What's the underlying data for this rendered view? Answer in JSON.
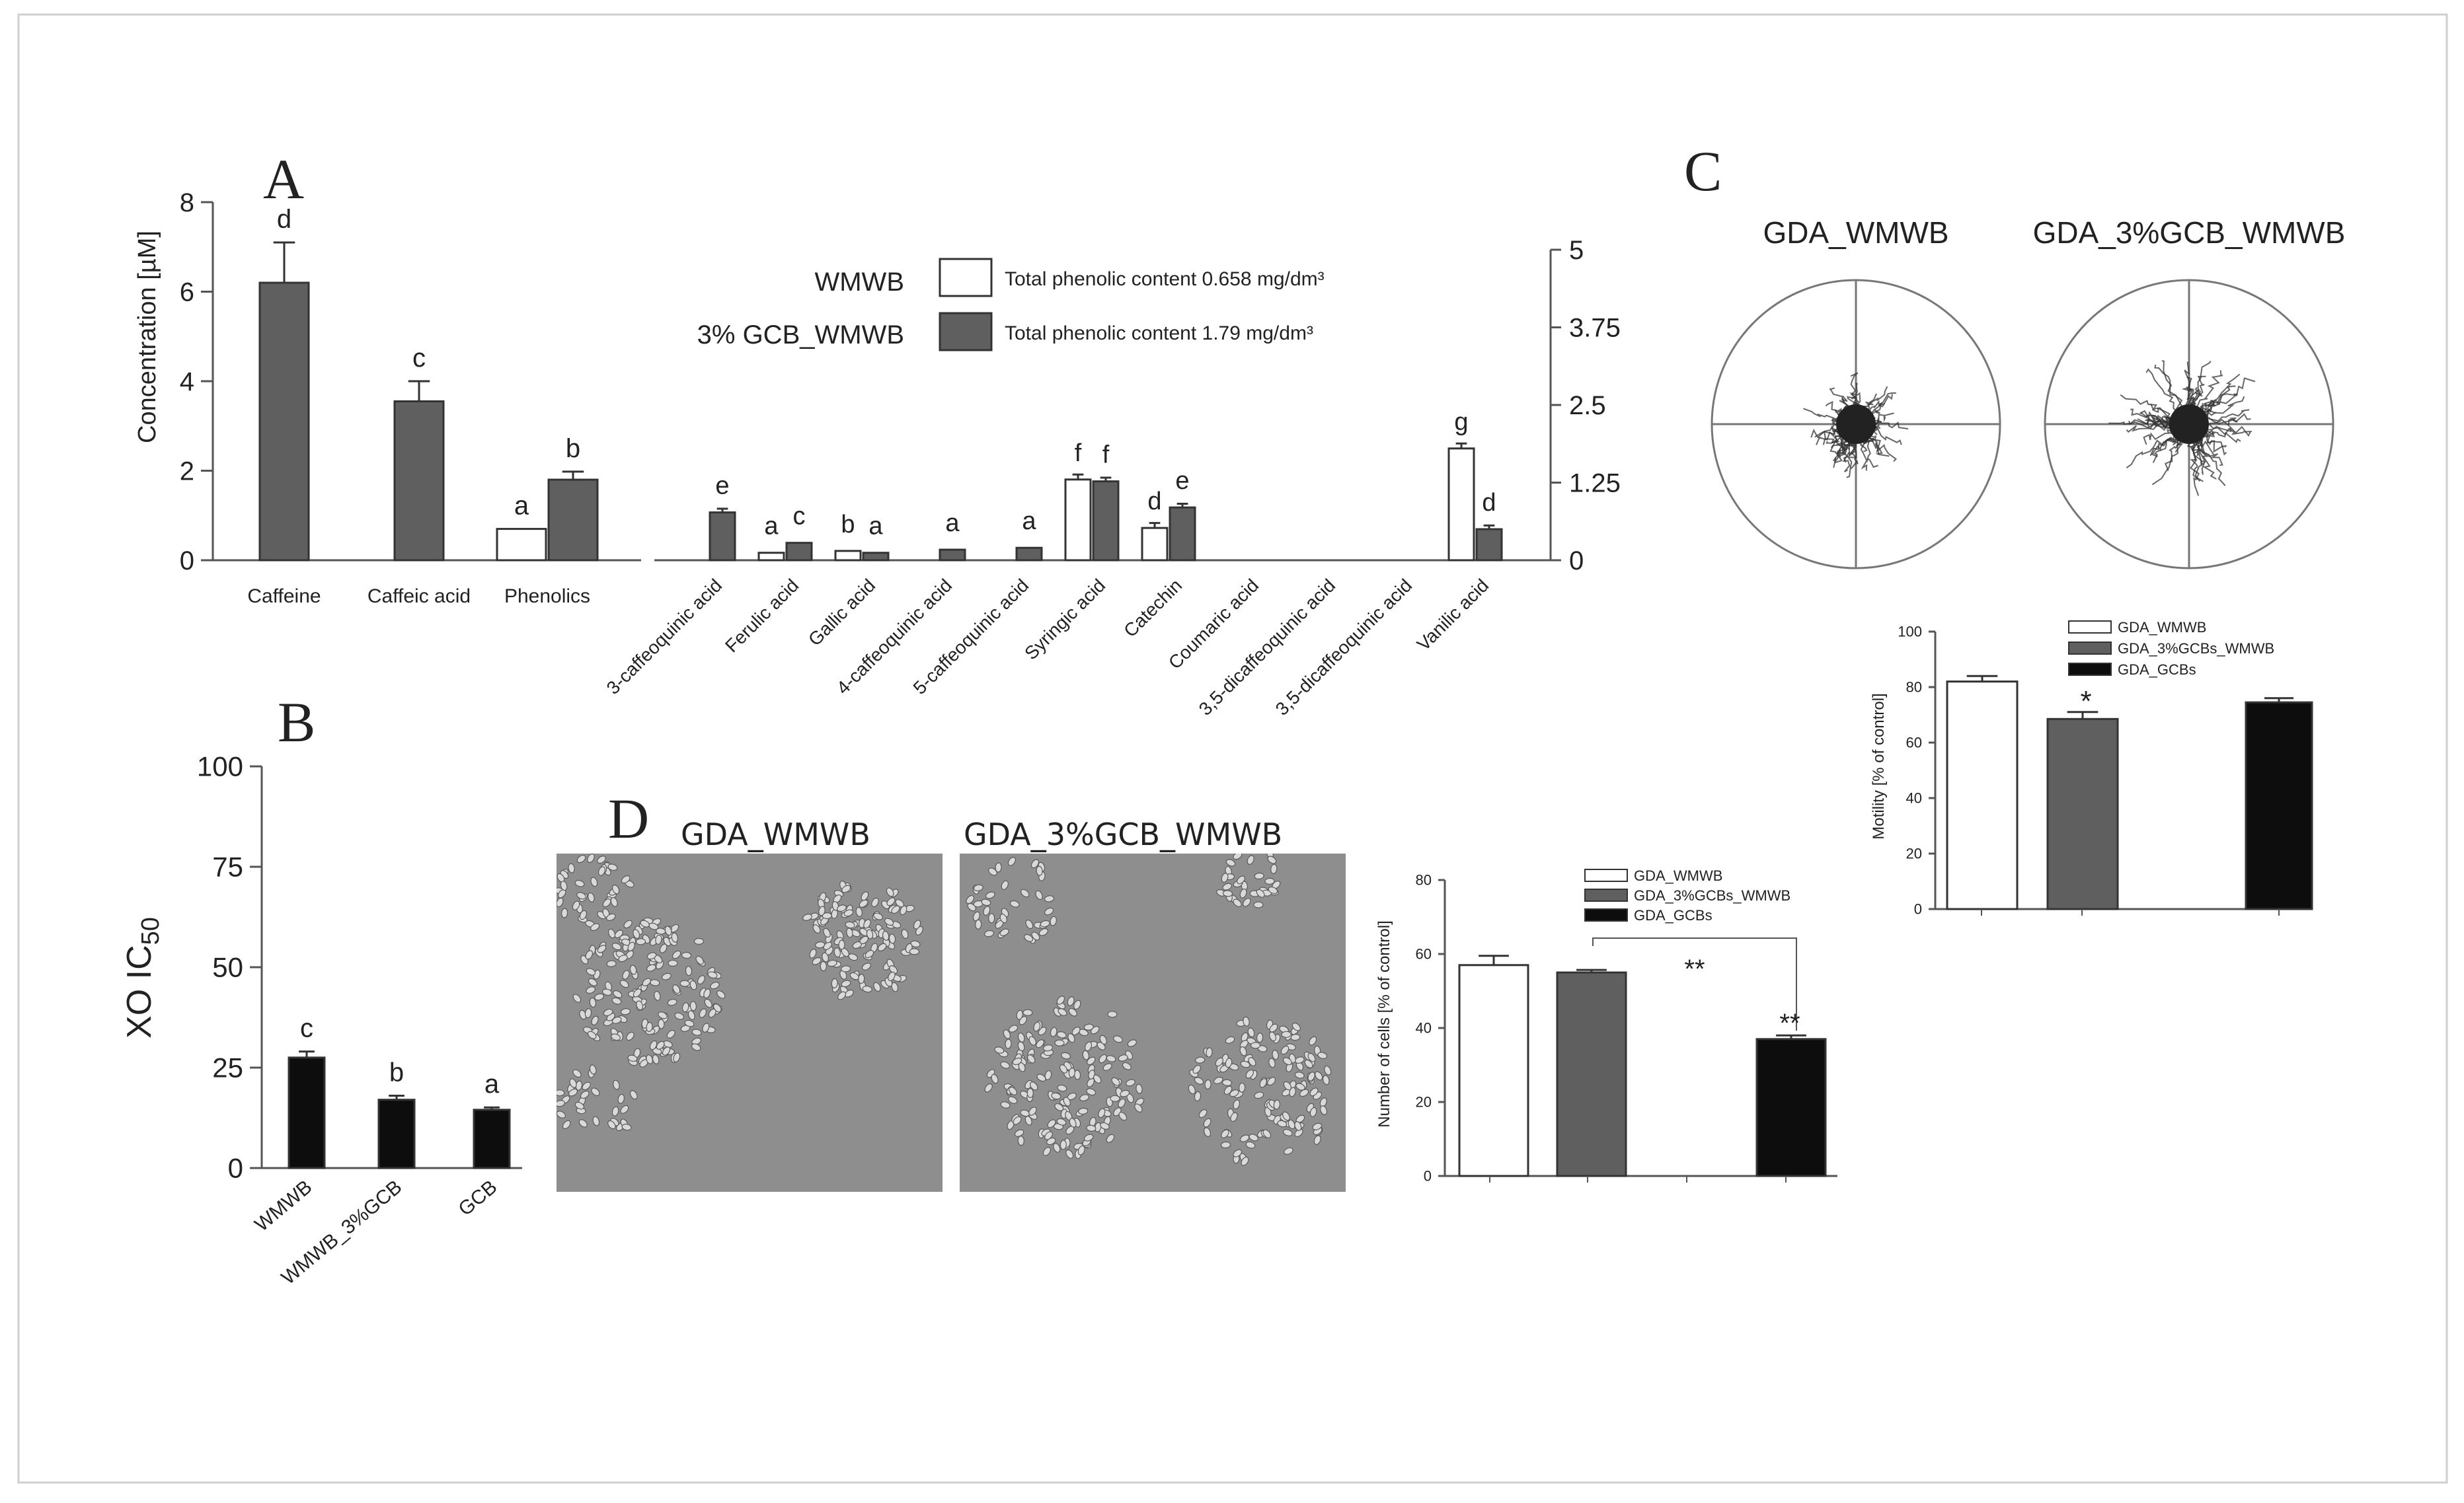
{
  "panels": {
    "a": {
      "letter": "A",
      "ylabel": "Concentration [µM]",
      "legend": {
        "names": [
          "WMWB",
          "3% GCB_WMWB"
        ],
        "notes": [
          "Total phenolic content 0.658 mg/dm³",
          "Total phenolic content 1.79 mg/dm³"
        ]
      }
    },
    "b": {
      "letter": "B",
      "ylabel": "XO IC",
      "ylabel_sub": "50"
    },
    "c": {
      "letter": "C",
      "track_titles": [
        "GDA_WMWB",
        "GDA_3%GCB_WMWB"
      ],
      "ylabel": "Motility [% of control]",
      "legend": [
        "GDA_WMWB",
        "GDA_3%GCBs_WMWB",
        "GDA_GCBs"
      ],
      "star": "*"
    },
    "d": {
      "letter": "D",
      "image_titles": [
        "GDA_WMWB",
        "GDA_3%GCB_WMWB"
      ],
      "ylabel": "Number of cells [% of control]",
      "legend": [
        "GDA_WMWB",
        "GDA_3%GCBs_WMWB",
        "GDA_GCBs"
      ],
      "bracket_label": "**",
      "star": "**"
    }
  },
  "colors": {
    "white_bar": "#ffffff",
    "gray_bar": "#5f5f5f",
    "black_bar": "#0d0d0d",
    "axis": "#555555"
  },
  "chart_data": [
    {
      "id": "A-left",
      "type": "bar",
      "categories": [
        "Caffeine",
        "Caffeic acid",
        "Phenolics"
      ],
      "series": [
        {
          "name": "WMWB",
          "values": [
            0,
            0,
            0.7
          ],
          "letters": [
            "",
            "",
            "a"
          ]
        },
        {
          "name": "3% GCB_WMWB",
          "values": [
            6.2,
            3.55,
            1.8
          ],
          "errors": [
            0.9,
            0.45,
            0.18
          ],
          "letters": [
            "d",
            "c",
            "b"
          ]
        }
      ],
      "ylabel": "Concentration [µM]",
      "ylim": [
        0,
        8
      ],
      "yticks": [
        0,
        2,
        4,
        6,
        8
      ]
    },
    {
      "id": "A-right",
      "type": "bar",
      "categories": [
        "3-caffeoquinic acid",
        "Ferulic acid",
        "Gallic acid",
        "4-caffeoquinic acid",
        "5-caffeoquinic acid",
        "Syringic acid",
        "Catechin",
        "Coumaric acid",
        "3,5-dicaffeoquinic acid",
        "3,5-dicaffeoquinic acid",
        "Vanilic acid"
      ],
      "series": [
        {
          "name": "WMWB",
          "values": [
            0,
            0.12,
            0.15,
            0,
            0,
            1.3,
            0.52,
            0,
            0,
            0,
            1.8
          ],
          "letters": [
            "",
            "a",
            "b",
            "",
            "",
            "f",
            "d",
            "",
            "",
            "",
            "g"
          ]
        },
        {
          "name": "3% GCB_WMWB",
          "values": [
            0.77,
            0.28,
            0.12,
            0.17,
            0.2,
            1.27,
            0.85,
            0,
            0,
            0,
            0.5
          ],
          "letters": [
            "e",
            "c",
            "a",
            "a",
            "a",
            "f",
            "e",
            "",
            "",
            "",
            "d"
          ]
        }
      ],
      "ylim": [
        0,
        5
      ],
      "yticks": [
        "0",
        "1.25",
        "2.5",
        "3.75",
        "5"
      ]
    },
    {
      "id": "B",
      "type": "bar",
      "categories": [
        "WMWB",
        "WMWB_3%GCB",
        "GCB"
      ],
      "values": [
        27.5,
        17,
        14.5
      ],
      "errors": [
        1.5,
        1,
        0.6
      ],
      "letters": [
        "c",
        "b",
        "a"
      ],
      "ylim": [
        0,
        100
      ],
      "yticks": [
        0,
        25,
        50,
        75,
        100
      ]
    },
    {
      "id": "C",
      "type": "bar",
      "categories": [
        "GDA_WMWB",
        "GDA_3%GCBs_WMWB",
        "GDA_GCBs"
      ],
      "values": [
        82,
        68.5,
        74.5
      ],
      "errors": [
        2,
        2.5,
        1.5
      ],
      "ylim": [
        0,
        100
      ],
      "yticks": [
        0,
        20,
        40,
        60,
        80,
        100
      ]
    },
    {
      "id": "D",
      "type": "bar",
      "categories": [
        "GDA_WMWB",
        "GDA_3%GCBs_WMWB",
        "GDA_GCBs"
      ],
      "values": [
        57,
        55,
        37
      ],
      "errors": [
        2.5,
        0.7,
        1
      ],
      "ylim": [
        0,
        80
      ],
      "yticks": [
        0,
        20,
        40,
        60,
        80
      ]
    }
  ]
}
